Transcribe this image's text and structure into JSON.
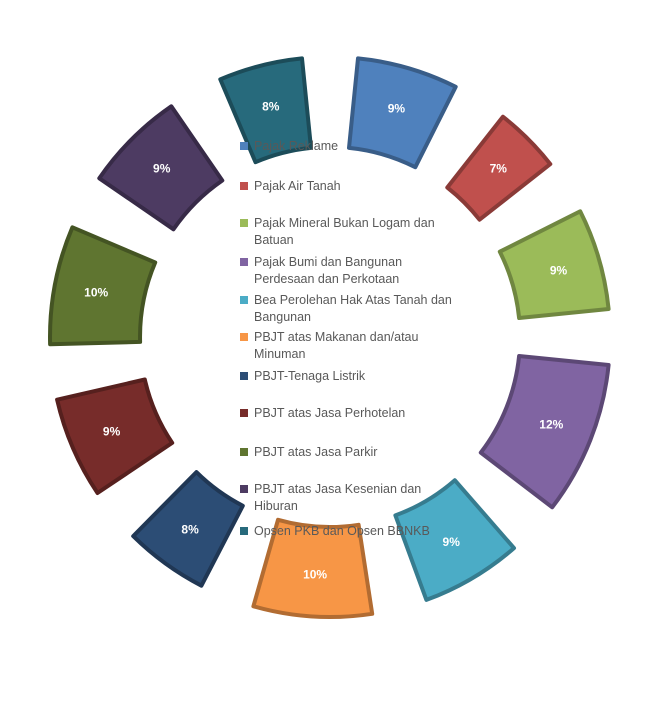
{
  "chart_data": {
    "type": "pie",
    "title": "",
    "legend_position": "center",
    "categories": [
      "Pajak Reklame",
      "Pajak Air Tanah",
      "Pajak Mineral Bukan Logam dan Batuan",
      "Pajak Bumi dan Bangunan Perdesaan dan Perkotaan",
      "Bea Perolehan Hak Atas Tanah dan Bangunan",
      "PBJT atas Makanan dan/atau Minuman",
      "PBJT-Tenaga Listrik",
      "PBJT atas Jasa Perhotelan",
      "PBJT atas Jasa Parkir",
      "PBJT atas Jasa Kesenian dan Hiburan",
      "Opsen PKB dan Opsen BBNKB"
    ],
    "values": [
      9,
      7,
      9,
      12,
      9,
      10,
      8,
      9,
      10,
      9,
      8
    ],
    "labels": [
      "9%",
      "7%",
      "9%",
      "12%",
      "9%",
      "10%",
      "8%",
      "9%",
      "10%",
      "9%",
      "8%"
    ],
    "colors": [
      "#4F81BD",
      "#C0504D",
      "#9BBB59",
      "#8064A2",
      "#4BACC6",
      "#F79646",
      "#2C4D75",
      "#772C2A",
      "#5F7530",
      "#4D3B62",
      "#276A7C"
    ]
  }
}
